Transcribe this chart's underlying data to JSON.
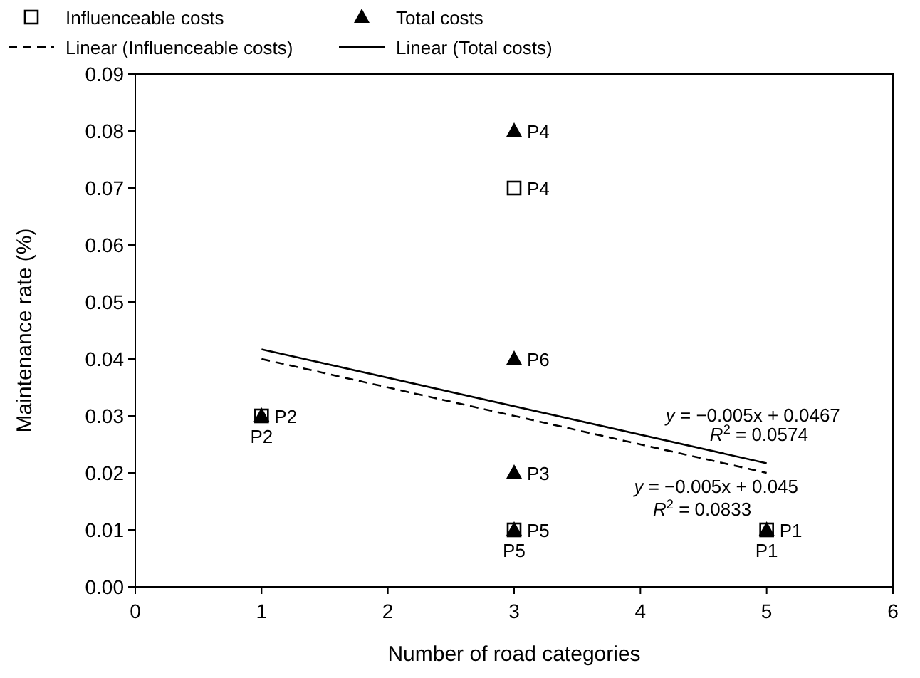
{
  "chart_data": {
    "type": "scatter",
    "xlabel": "Number of road categories",
    "ylabel": "Maintenance rate (%)",
    "xlim": [
      0,
      6
    ],
    "xticks": [
      0,
      1,
      2,
      3,
      4,
      5,
      6
    ],
    "ylim": [
      0,
      0.09
    ],
    "yticks": [
      {
        "value": 0,
        "label": "0.00"
      },
      {
        "value": 0.01,
        "label": "0.01"
      },
      {
        "value": 0.02,
        "label": "0.02"
      },
      {
        "value": 0.03,
        "label": "0.03"
      },
      {
        "value": 0.04,
        "label": "0.04"
      },
      {
        "value": 0.05,
        "label": "0.05"
      },
      {
        "value": 0.06,
        "label": "0.06"
      },
      {
        "value": 0.07,
        "label": "0.07"
      },
      {
        "value": 0.08,
        "label": "0.08"
      },
      {
        "value": 0.09,
        "label": "0.09"
      }
    ],
    "grid": false,
    "legend": "top",
    "series": [
      {
        "name": "Influenceable costs",
        "marker": "square",
        "color": "#000000",
        "x": [
          1,
          3,
          3,
          5
        ],
        "values": [
          0.03,
          0.07,
          0.01,
          0.01
        ]
      },
      {
        "name": "Total costs",
        "marker": "triangle",
        "color": "#000000",
        "x": [
          1,
          3,
          3,
          3,
          3,
          5
        ],
        "values": [
          0.03,
          0.08,
          0.04,
          0.02,
          0.01,
          0.01
        ]
      },
      {
        "name": "Linear (Influenceable costs)",
        "type": "line",
        "line_style": "dashed",
        "color": "#000000",
        "x": [
          1,
          5
        ],
        "values": [
          0.04,
          0.02
        ]
      },
      {
        "name": "Linear (Total costs)",
        "type": "line",
        "line_style": "solid",
        "color": "#000000",
        "x": [
          1,
          5
        ],
        "values": [
          0.0417,
          0.0217
        ]
      }
    ],
    "annotations": [
      {
        "text": "P2",
        "x": 1,
        "y": 0.03
      },
      {
        "text": "P2",
        "x": 1,
        "y": 0.03
      },
      {
        "text": "P4",
        "x": 3,
        "y": 0.08
      },
      {
        "text": "P4",
        "x": 3,
        "y": 0.07
      },
      {
        "text": "P6",
        "x": 3,
        "y": 0.04
      },
      {
        "text": "P3",
        "x": 3,
        "y": 0.02
      },
      {
        "text": "P5",
        "x": 3,
        "y": 0.01
      },
      {
        "text": "P5",
        "x": 3,
        "y": 0.01
      },
      {
        "text": "P1",
        "x": 5,
        "y": 0.01
      },
      {
        "text": "P1",
        "x": 5,
        "y": 0.01
      },
      "y = −0.005x + 0.0467",
      "R$^{2}$ = 0.0574",
      "y = −0.005x + 0.045",
      "R$^{2}$ = 0.0833"
    ]
  }
}
